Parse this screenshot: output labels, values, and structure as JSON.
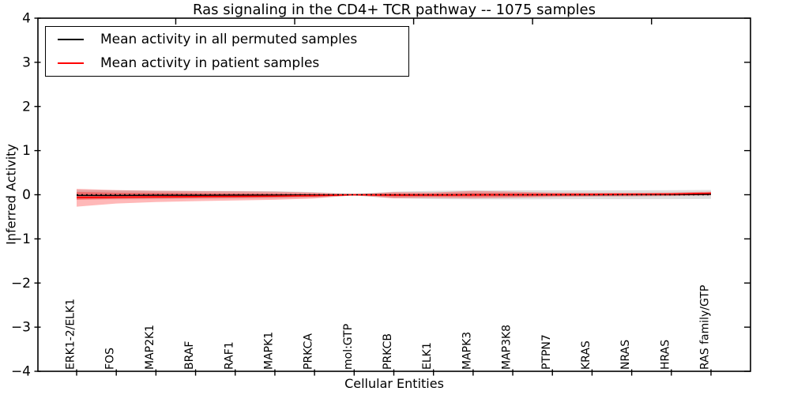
{
  "title": "Ras signaling in the CD4+ TCR pathway -- 1075 samples",
  "axes": {
    "xlabel": "Cellular Entities",
    "ylabel": "Inferred Activity",
    "ylim": [
      -4,
      4
    ],
    "ytick_labels": [
      "4",
      "3",
      "2",
      "1",
      "0",
      "−1",
      "−2",
      "−3",
      "−4"
    ]
  },
  "legend": {
    "position": "upper left",
    "items": [
      {
        "label": "Mean activity in all permuted samples",
        "color": "#000000"
      },
      {
        "label": "Mean activity in patient samples",
        "color": "#ff0000"
      }
    ]
  },
  "chart_data": {
    "type": "line",
    "title": "Ras signaling in the CD4+ TCR pathway -- 1075 samples",
    "xlabel": "Cellular Entities",
    "ylabel": "Inferred Activity",
    "ylim": [
      -4,
      4
    ],
    "grid": false,
    "legend_position": "upper left",
    "categories": [
      "ERK1-2/ELK1",
      "FOS",
      "MAP2K1",
      "BRAF",
      "RAF1",
      "MAPK1",
      "PRKCA",
      "mol:GTP",
      "PRKCB",
      "ELK1",
      "MAPK3",
      "MAP3K8",
      "PTPN7",
      "KRAS",
      "NRAS",
      "HRAS",
      "RAS family/GTP"
    ],
    "series": [
      {
        "name": "Mean activity in all permuted samples",
        "color": "#000000",
        "width": 1.5,
        "values": [
          -0.015,
          -0.015,
          -0.012,
          -0.012,
          -0.01,
          -0.008,
          -0.006,
          0.0,
          -0.004,
          -0.004,
          -0.002,
          -0.002,
          0.0,
          0.0,
          0.002,
          0.003,
          0.008
        ]
      },
      {
        "name": "Mean activity in patient samples",
        "color": "#ff0000",
        "width": 1.7,
        "values": [
          -0.063,
          -0.055,
          -0.048,
          -0.042,
          -0.038,
          -0.03,
          -0.02,
          0.0,
          -0.01,
          -0.008,
          -0.004,
          0.0,
          0.002,
          0.006,
          0.01,
          0.015,
          0.035
        ]
      }
    ],
    "bands": [
      {
        "name": "permuted samples std range",
        "color": "#000000",
        "opacity": 0.13,
        "upper": [
          0.11,
          0.1,
          0.092,
          0.088,
          0.085,
          0.08,
          0.06,
          0.018,
          0.07,
          0.088,
          0.098,
          0.1,
          0.1,
          0.1,
          0.1,
          0.102,
          0.108
        ],
        "lower": [
          -0.1,
          -0.105,
          -0.1,
          -0.095,
          -0.09,
          -0.085,
          -0.065,
          -0.018,
          -0.08,
          -0.098,
          -0.105,
          -0.105,
          -0.102,
          -0.1,
          -0.1,
          -0.1,
          -0.095
        ]
      },
      {
        "name": "patient samples std range (outer)",
        "color": "#ff0000",
        "opacity": 0.28,
        "upper": [
          0.134,
          0.105,
          0.09,
          0.082,
          0.078,
          0.07,
          0.048,
          0.012,
          0.058,
          0.052,
          0.088,
          0.07,
          0.05,
          0.048,
          0.047,
          0.05,
          0.07
        ],
        "lower": [
          -0.27,
          -0.2,
          -0.165,
          -0.145,
          -0.13,
          -0.115,
          -0.085,
          -0.012,
          -0.08,
          -0.07,
          -0.082,
          -0.07,
          -0.052,
          -0.042,
          -0.038,
          -0.03,
          -0.015
        ]
      },
      {
        "name": "patient samples std range (inner)",
        "color": "#ff0000",
        "opacity": 0.32,
        "upper": [
          0.063,
          0.048,
          0.04,
          0.035,
          0.03,
          0.026,
          0.02,
          0.008,
          0.028,
          0.028,
          0.04,
          0.036,
          0.028,
          0.026,
          0.026,
          0.028,
          0.048
        ],
        "lower": [
          -0.116,
          -0.095,
          -0.085,
          -0.075,
          -0.068,
          -0.06,
          -0.042,
          -0.008,
          -0.042,
          -0.04,
          -0.044,
          -0.04,
          -0.03,
          -0.022,
          -0.018,
          -0.012,
          0.005
        ]
      }
    ],
    "zero_line": {
      "value": 0,
      "style": "dotted",
      "color": "#000000"
    }
  }
}
